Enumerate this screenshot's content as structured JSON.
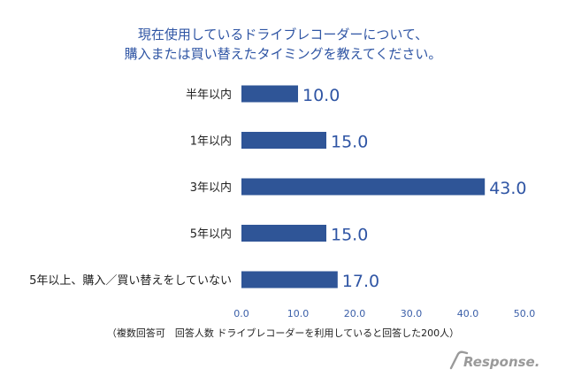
{
  "chart_data": {
    "type": "bar",
    "orientation": "horizontal",
    "title_lines": [
      "現在使用しているドライブレコーダーについて、",
      "購入または買い替えたタイミングを教えてください。"
    ],
    "categories": [
      "半年以内",
      "1年以内",
      "3年以内",
      "5年以内",
      "5年以上、購入／買い替えをしていない"
    ],
    "values": [
      10.0,
      15.0,
      43.0,
      15.0,
      17.0
    ],
    "value_labels": [
      "10.0",
      "15.0",
      "43.0",
      "15.0",
      "17.0"
    ],
    "xlim": [
      0,
      50
    ],
    "xticks": [
      "0.0",
      "10.0",
      "20.0",
      "30.0",
      "40.0",
      "50.0"
    ],
    "grid": false,
    "bar_color": "#2f5597",
    "note": "（複数回答可　回答人数 ドライブレコーダーを利用していると回答した200人）"
  },
  "watermark": {
    "icon": "response-logo-icon",
    "text": "Response."
  }
}
